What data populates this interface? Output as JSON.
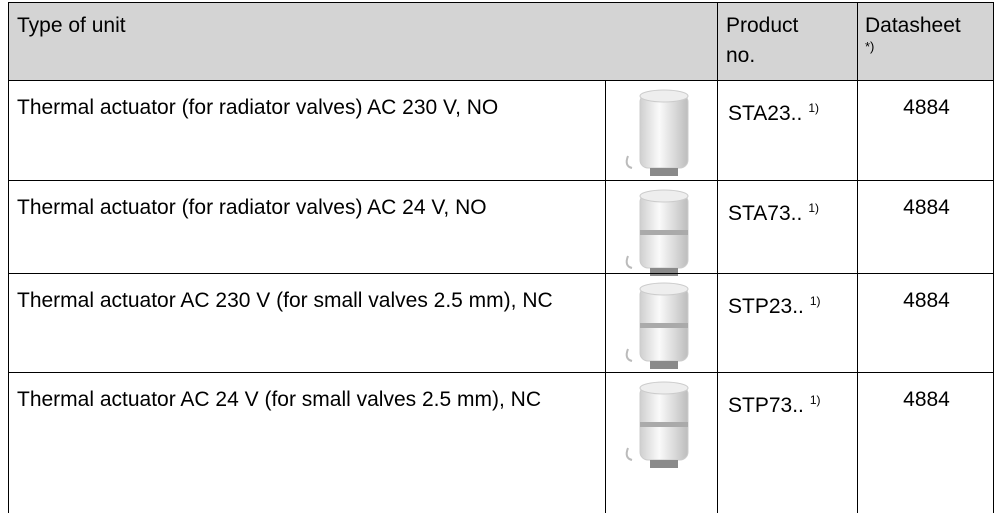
{
  "header": {
    "type_of_unit": "Type of unit",
    "product_no": "Product no.",
    "datasheet": "Datasheet",
    "datasheet_note": "*)"
  },
  "rows": [
    {
      "description": "Thermal actuator (for radiator valves) AC 230 V, NO",
      "product": "STA23..",
      "note": "1)",
      "datasheet": "4884"
    },
    {
      "description": "Thermal actuator (for radiator valves) AC 24 V, NO",
      "product": "STA73..",
      "note": "1)",
      "datasheet": "4884"
    },
    {
      "description": "Thermal actuator AC 230 V (for small valves 2.5 mm), NC",
      "product": "STP23..",
      "note": "1)",
      "datasheet": "4884"
    },
    {
      "description": "Thermal actuator AC 24 V (for small valves 2.5 mm), NC",
      "product": "STP73..",
      "note": "1)",
      "datasheet": "4884"
    }
  ]
}
